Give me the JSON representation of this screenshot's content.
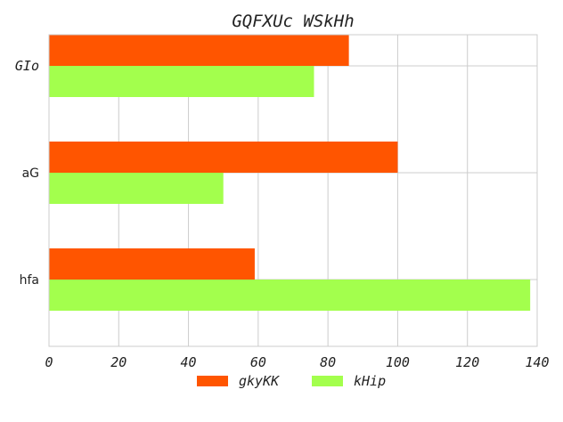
{
  "chart_data": {
    "type": "bar",
    "orientation": "horizontal",
    "title": "GQFXUc WSkHh",
    "categories": [
      "GIo",
      "aG",
      "hfa"
    ],
    "series": [
      {
        "name": "gkyKK",
        "color": "#ff5500",
        "values": [
          86,
          100,
          59
        ]
      },
      {
        "name": "kHip",
        "color": "#a3ff4d",
        "values": [
          76,
          50,
          138
        ]
      }
    ],
    "xlim": [
      0,
      140
    ],
    "x_ticks": [
      "0",
      "20",
      "40",
      "60",
      "80",
      "100",
      "120",
      "140"
    ],
    "xlabel": "",
    "ylabel": "",
    "grid": true,
    "legend": "bottom-center"
  }
}
